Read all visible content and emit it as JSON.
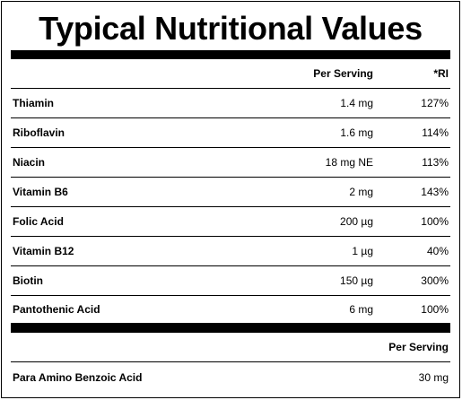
{
  "title": "Typical Nutritional Values",
  "header": {
    "per_serving": "Per Serving",
    "ri": "*RI"
  },
  "rows": [
    {
      "name": "Thiamin",
      "amount": "1.4 mg",
      "ri": "127%"
    },
    {
      "name": "Riboflavin",
      "amount": "1.6 mg",
      "ri": "114%"
    },
    {
      "name": "Niacin",
      "amount": "18 mg NE",
      "ri": "113%"
    },
    {
      "name": "Vitamin B6",
      "amount": "2 mg",
      "ri": "143%"
    },
    {
      "name": "Folic Acid",
      "amount": "200 µg",
      "ri": "100%"
    },
    {
      "name": "Vitamin B12",
      "amount": "1 µg",
      "ri": "40%"
    },
    {
      "name": "Biotin",
      "amount": "150 µg",
      "ri": "300%"
    },
    {
      "name": "Pantothenic Acid",
      "amount": "6 mg",
      "ri": "100%"
    }
  ],
  "section2": {
    "header": {
      "per_serving": "Per Serving"
    },
    "rows": [
      {
        "name": "Para Amino Benzoic Acid",
        "amount": "30 mg"
      }
    ]
  }
}
